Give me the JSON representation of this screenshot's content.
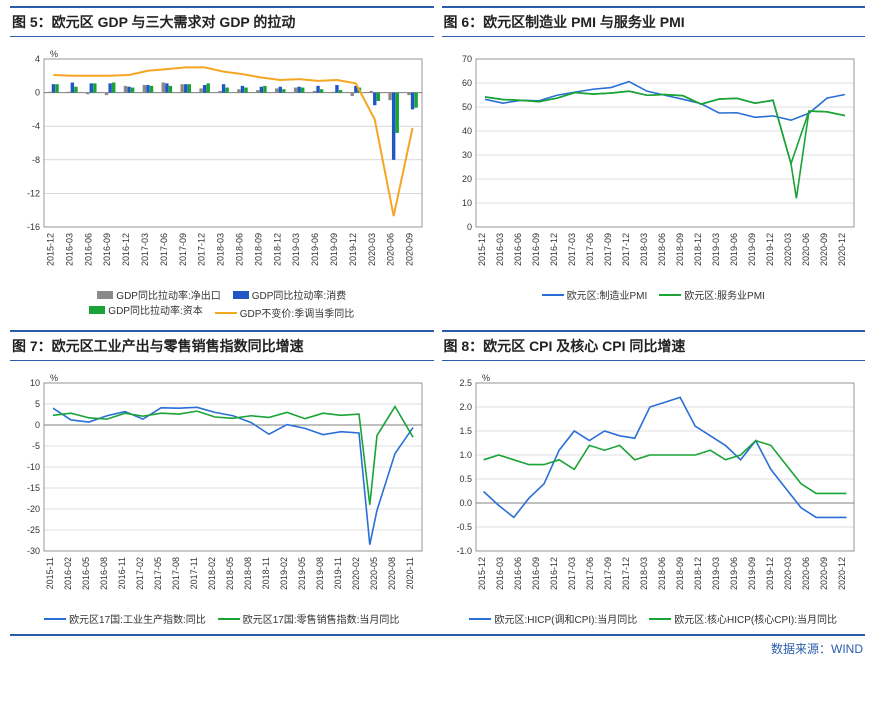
{
  "colors": {
    "accent": "#2a5caa",
    "grid": "#bfbfbf",
    "axis": "#808080",
    "text": "#333333",
    "blue": "#2a6fd6",
    "green": "#1aa336",
    "orange": "#f5a623",
    "gray_bar": "#8a8a8a",
    "blue_bar": "#1f57c3",
    "green_bar": "#1aa336"
  },
  "fig5": {
    "title": "图 5：欧元区 GDP 与三大需求对 GDP 的拉动",
    "type": "bar+line",
    "y_unit": "%",
    "ylim": [
      -16,
      4
    ],
    "ytick_step": 4,
    "x_labels": [
      "2015-12",
      "2016-03",
      "2016-06",
      "2016-09",
      "2016-12",
      "2017-03",
      "2017-06",
      "2017-09",
      "2017-12",
      "2018-03",
      "2018-06",
      "2018-09",
      "2018-12",
      "2019-03",
      "2019-06",
      "2019-09",
      "2019-12",
      "2020-03",
      "2020-06",
      "2020-09"
    ],
    "series": {
      "net_export": {
        "label": "GDP同比拉动率:净出口",
        "color": "#8a8a8a",
        "values": [
          0.1,
          0.1,
          -0.2,
          -0.3,
          0.8,
          0.9,
          1.2,
          1.0,
          0.5,
          0.2,
          0.4,
          0.3,
          0.5,
          0.6,
          0.2,
          0.1,
          -0.4,
          0.2,
          -0.9,
          -0.3
        ]
      },
      "consumption": {
        "label": "GDP同比拉动率:消费",
        "color": "#1f57c3",
        "values": [
          1.0,
          1.2,
          1.1,
          1.1,
          0.7,
          0.9,
          1.1,
          1.0,
          0.9,
          1.0,
          0.8,
          0.7,
          0.7,
          0.7,
          0.8,
          0.9,
          0.8,
          -1.5,
          -8.0,
          -2.0
        ]
      },
      "capital": {
        "label": "GDP同比拉动率:资本",
        "color": "#1aa336",
        "values": [
          1.0,
          0.7,
          1.1,
          1.2,
          0.6,
          0.8,
          0.8,
          1.0,
          1.1,
          0.6,
          0.6,
          0.8,
          0.4,
          0.6,
          0.4,
          0.3,
          0.6,
          -1.0,
          -4.8,
          -1.8
        ]
      },
      "gdp": {
        "label": "GDP不变价:季调当季同比",
        "color": "#f5a623",
        "values": [
          2.1,
          2.0,
          2.0,
          2.0,
          2.1,
          2.6,
          2.8,
          3.0,
          3.0,
          2.5,
          2.2,
          1.8,
          1.5,
          1.6,
          1.4,
          1.5,
          1.1,
          -3.2,
          -14.7,
          -4.2
        ]
      }
    },
    "legend_order": [
      "net_export",
      "consumption",
      "capital",
      "gdp"
    ],
    "fontsize": {
      "title": 14,
      "axis": 9,
      "legend": 10
    }
  },
  "fig6": {
    "title": "图 6：欧元区制造业 PMI 与服务业 PMI",
    "type": "line",
    "ylim": [
      0,
      70
    ],
    "ytick_step": 10,
    "x_labels": [
      "2015-12",
      "2016-03",
      "2016-06",
      "2016-09",
      "2016-12",
      "2017-03",
      "2017-06",
      "2017-09",
      "2017-12",
      "2018-03",
      "2018-06",
      "2018-09",
      "2018-12",
      "2019-03",
      "2019-06",
      "2019-09",
      "2019-12",
      "2020-03",
      "2020-06",
      "2020-09",
      "2020-12"
    ],
    "series": {
      "mfg": {
        "label": "欧元区:制造业PMI",
        "color": "#2a6fd6",
        "values": [
          53.2,
          51.6,
          52.8,
          52.6,
          54.9,
          56.2,
          57.4,
          58.1,
          60.6,
          56.6,
          54.9,
          53.2,
          51.4,
          47.5,
          47.6,
          45.7,
          46.3,
          44.5,
          47.4,
          53.7,
          55.2
        ]
      },
      "svc": {
        "label": "欧元区:服务业PMI",
        "color": "#1aa336",
        "values": [
          54.2,
          53.1,
          52.8,
          52.2,
          53.7,
          56.0,
          55.4,
          55.8,
          56.6,
          54.9,
          55.2,
          54.7,
          51.2,
          53.3,
          53.6,
          51.6,
          52.8,
          26.4,
          48.3,
          48.0,
          46.4
        ]
      }
    },
    "dip_extra": {
      "svc_min_x": 17.3,
      "svc_min_y": 12.0
    },
    "fontsize": {
      "title": 14,
      "axis": 9,
      "legend": 10
    }
  },
  "fig7": {
    "title": "图 7：欧元区工业产出与零售销售指数同比增速",
    "type": "line",
    "y_unit": "%",
    "ylim": [
      -30,
      10
    ],
    "ytick_step": 5,
    "x_labels": [
      "2015-11",
      "2016-02",
      "2016-05",
      "2016-08",
      "2016-11",
      "2017-02",
      "2017-05",
      "2017-08",
      "2017-11",
      "2018-02",
      "2018-05",
      "2018-08",
      "2018-11",
      "2019-02",
      "2019-05",
      "2019-08",
      "2019-11",
      "2020-02",
      "2020-05",
      "2020-08",
      "2020-11"
    ],
    "series": {
      "ip": {
        "label": "欧元区17国:工业生产指数:同比",
        "color": "#2a6fd6",
        "values": [
          4.0,
          1.2,
          0.7,
          2.2,
          3.2,
          1.4,
          4.1,
          4.0,
          4.2,
          3.0,
          2.2,
          0.6,
          -2.2,
          0.1,
          -0.8,
          -2.3,
          -1.6,
          -1.9,
          -20.3,
          -6.8,
          -0.6
        ],
        "deep": {
          "x": 17.6,
          "y": -28.5
        }
      },
      "retail": {
        "label": "欧元区17国:零售销售指数:当月同比",
        "color": "#1aa336",
        "values": [
          2.3,
          2.8,
          1.7,
          1.4,
          2.8,
          2.1,
          2.8,
          2.6,
          3.3,
          1.9,
          1.6,
          2.2,
          1.8,
          3.0,
          1.5,
          2.8,
          2.3,
          2.6,
          -2.5,
          4.4,
          -2.9
        ],
        "deep": {
          "x": 17.6,
          "y": -19.0
        }
      }
    },
    "fontsize": {
      "title": 14,
      "axis": 9,
      "legend": 10
    }
  },
  "fig8": {
    "title": "图 8：欧元区 CPI 及核心 CPI 同比增速",
    "type": "line",
    "y_unit": "%",
    "ylim": [
      -1.0,
      2.5
    ],
    "ytick_step": 0.5,
    "x_labels": [
      "2015-12",
      "2016-03",
      "2016-06",
      "2016-09",
      "2016-12",
      "2017-03",
      "2017-06",
      "2017-09",
      "2017-12",
      "2018-03",
      "2018-06",
      "2018-09",
      "2018-12",
      "2019-03",
      "2019-06",
      "2019-09",
      "2019-12",
      "2020-03",
      "2020-06",
      "2020-09",
      "2020-12"
    ],
    "series": {
      "hicp": {
        "label": "欧元区:HICP(调和CPI):当月同比",
        "color": "#2a6fd6",
        "values": [
          0.24,
          -0.05,
          -0.3,
          0.1,
          0.4,
          1.1,
          1.5,
          1.3,
          1.5,
          1.4,
          1.35,
          2.0,
          2.1,
          2.2,
          1.6,
          1.4,
          1.2,
          0.9,
          1.3,
          0.7,
          0.3
        ],
        "tail": [
          -0.1,
          -0.3,
          -0.3,
          -0.3
        ]
      },
      "core": {
        "label": "欧元区:核心HICP(核心CPI):当月同比",
        "color": "#1aa336",
        "values": [
          0.9,
          1.0,
          0.9,
          0.8,
          0.8,
          0.9,
          0.7,
          1.2,
          1.1,
          1.2,
          0.9,
          1.0,
          1.0,
          1.0,
          1.0,
          1.1,
          0.9,
          1.0,
          1.3,
          1.2,
          0.8
        ],
        "tail": [
          0.4,
          0.2,
          0.2,
          0.2
        ]
      }
    },
    "fontsize": {
      "title": 14,
      "axis": 9,
      "legend": 10
    }
  },
  "source_label": "数据来源：WIND"
}
